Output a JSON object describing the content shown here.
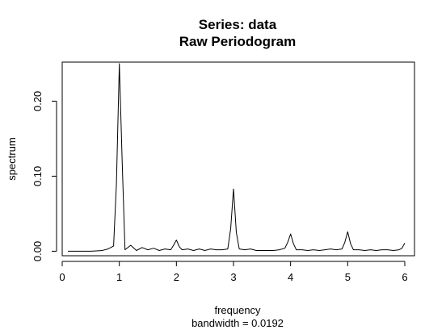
{
  "chart_data": {
    "type": "line",
    "title": "Series: data",
    "subtitle": "Raw Periodogram",
    "xlabel": "frequency",
    "xlabel_sub": "bandwidth = 0.0192",
    "ylabel": "spectrum",
    "xlim": [
      0,
      6.17
    ],
    "ylim": [
      -0.006,
      0.252
    ],
    "xticks": [
      0,
      1,
      2,
      3,
      4,
      5,
      6
    ],
    "xtick_labels": [
      "0",
      "1",
      "2",
      "3",
      "4",
      "5",
      "6"
    ],
    "yticks": [
      0.0,
      0.1,
      0.2
    ],
    "ytick_labels": [
      "0.00",
      "0.10",
      "0.20"
    ],
    "grid": false,
    "series": [
      {
        "color": "#000000",
        "x": [
          0.1,
          0.2,
          0.3,
          0.4,
          0.5,
          0.6,
          0.7,
          0.8,
          0.85,
          0.9,
          0.95,
          1.0,
          1.05,
          1.1,
          1.2,
          1.3,
          1.4,
          1.5,
          1.6,
          1.7,
          1.8,
          1.9,
          1.95,
          2.0,
          2.05,
          2.1,
          2.2,
          2.3,
          2.4,
          2.5,
          2.6,
          2.7,
          2.8,
          2.9,
          2.95,
          3.0,
          3.05,
          3.1,
          3.2,
          3.3,
          3.4,
          3.5,
          3.6,
          3.7,
          3.8,
          3.9,
          3.95,
          4.0,
          4.05,
          4.1,
          4.2,
          4.3,
          4.4,
          4.5,
          4.6,
          4.7,
          4.8,
          4.9,
          4.95,
          5.0,
          5.05,
          5.1,
          5.2,
          5.3,
          5.4,
          5.5,
          5.6,
          5.7,
          5.8,
          5.9,
          5.95,
          6.0
        ],
        "y": [
          0.0,
          0.0,
          0.0,
          0.0,
          0.0,
          0.0005,
          0.001,
          0.003,
          0.005,
          0.007,
          0.09,
          0.25,
          0.12,
          0.002,
          0.008,
          0.001,
          0.005,
          0.002,
          0.004,
          0.001,
          0.003,
          0.002,
          0.008,
          0.015,
          0.006,
          0.002,
          0.003,
          0.001,
          0.003,
          0.001,
          0.003,
          0.002,
          0.002,
          0.003,
          0.03,
          0.083,
          0.025,
          0.003,
          0.002,
          0.003,
          0.001,
          0.001,
          0.001,
          0.001,
          0.002,
          0.004,
          0.012,
          0.023,
          0.01,
          0.002,
          0.002,
          0.001,
          0.002,
          0.001,
          0.002,
          0.003,
          0.002,
          0.003,
          0.012,
          0.026,
          0.01,
          0.002,
          0.002,
          0.001,
          0.002,
          0.001,
          0.002,
          0.002,
          0.001,
          0.002,
          0.004,
          0.011
        ]
      }
    ]
  }
}
